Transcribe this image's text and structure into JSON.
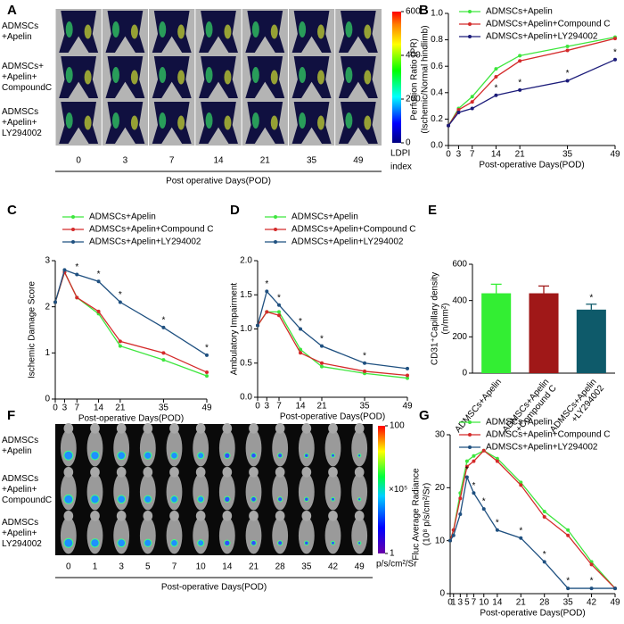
{
  "figures": [
    {
      "panel": "A",
      "rows": [
        [
          "ADMSCs",
          "+Apelin"
        ],
        [
          "ADMSCs+",
          "+Apelin+",
          "CompoundC"
        ],
        [
          "ADMSCs",
          "+Apelin+",
          "LY294002"
        ]
      ],
      "columns": [
        0,
        3,
        7,
        14,
        21,
        35,
        49
      ],
      "xlabel": "Post operative Days(POD)",
      "colorbar": {
        "lim": [
          0,
          600
        ],
        "ticks": [
          0,
          200,
          400,
          600
        ],
        "label": [
          "LDPI",
          "index"
        ]
      }
    },
    {
      "panel": "F",
      "rows": [
        [
          "ADMSCs",
          "+Apelin"
        ],
        [
          "ADMSCs",
          "+Apelin+",
          "CompoundC"
        ],
        [
          "ADMSCs",
          "+Apelin+",
          "LY294002"
        ]
      ],
      "columns": [
        0,
        1,
        3,
        5,
        7,
        10,
        14,
        21,
        28,
        35,
        42,
        49
      ],
      "xlabel": "Post-operative Days(POD)",
      "colorbar": {
        "lim": [
          1,
          100
        ],
        "ticks": [
          1,
          100
        ],
        "log": true,
        "unit": "×10⁵",
        "label": [
          "p/s/cm²/Sr"
        ]
      }
    }
  ],
  "chart_data": [
    {
      "panel": "B",
      "type": "line",
      "ylabel": [
        "Perfusion Ratio (PR)",
        "(Ischemic/Normal hindlimb)"
      ],
      "xlabel": "Post-operative Days(POD)",
      "x": [
        0,
        3,
        7,
        14,
        21,
        35,
        49
      ],
      "xlim": [
        0,
        49
      ],
      "xticks": [
        0,
        3,
        7,
        14,
        21,
        35,
        49
      ],
      "ylim": [
        0,
        1
      ],
      "yticks": [
        {
          "value": 0,
          "label": "0.0"
        },
        {
          "value": 0.2,
          "label": "0.2"
        },
        {
          "value": 0.4,
          "label": "0.4"
        },
        {
          "value": 0.6,
          "label": "0.6"
        },
        {
          "value": 0.8,
          "label": "0.8"
        },
        {
          "value": 1,
          "label": "1.0"
        }
      ],
      "series": [
        {
          "name": "ADMSCs+Apelin",
          "color": "#3de63d",
          "values": [
            0.15,
            0.28,
            0.37,
            0.58,
            0.68,
            0.75,
            0.82
          ]
        },
        {
          "name": "ADMSCs+Apelin+Compound C",
          "color": "#d42a2a",
          "values": [
            0.15,
            0.27,
            0.33,
            0.52,
            0.64,
            0.72,
            0.81
          ]
        },
        {
          "name": "ADMSCs+Apelin+LY294002",
          "color": "#1c1c7a",
          "values": [
            0.15,
            0.25,
            0.28,
            0.38,
            0.42,
            0.49,
            0.65
          ]
        }
      ],
      "stars": {
        "label": "*",
        "x": [
          14,
          21,
          35,
          49
        ]
      }
    },
    {
      "panel": "C",
      "type": "line",
      "ylabel": [
        "Ischemic Damage Score"
      ],
      "xlabel": "Post-operative Days(POD)",
      "x": [
        0,
        3,
        7,
        14,
        21,
        35,
        49
      ],
      "xlim": [
        0,
        49
      ],
      "xticks": [
        0,
        3,
        7,
        14,
        21,
        35,
        49
      ],
      "ylim": [
        0,
        3
      ],
      "yticks": [
        0,
        1,
        2,
        3
      ],
      "series": [
        {
          "name": "ADMSCs+Apelin",
          "color": "#3de63d",
          "values": [
            2.1,
            2.75,
            2.2,
            1.85,
            1.15,
            0.85,
            0.5
          ]
        },
        {
          "name": "ADMSCs+Apelin+Compound C",
          "color": "#d42a2a",
          "values": [
            2.1,
            2.75,
            2.2,
            1.9,
            1.25,
            1.0,
            0.58
          ]
        },
        {
          "name": "ADMSCs+Apelin+LY294002",
          "color": "#1f5080",
          "values": [
            2.1,
            2.8,
            2.7,
            2.55,
            2.1,
            1.55,
            0.95
          ]
        }
      ],
      "stars": {
        "label": "*",
        "x": [
          7,
          14,
          21,
          35,
          49
        ]
      }
    },
    {
      "panel": "D",
      "type": "line",
      "ylabel": [
        "Ambulatory Impairment"
      ],
      "xlabel": "Post-operative Days(POD)",
      "x": [
        0,
        3,
        7,
        14,
        21,
        35,
        49
      ],
      "xlim": [
        0,
        49
      ],
      "xticks": [
        0,
        3,
        7,
        14,
        21,
        35,
        49
      ],
      "ylim": [
        0,
        2
      ],
      "yticks": [
        {
          "value": 0,
          "label": "0.0"
        },
        {
          "value": 0.5,
          "label": "0.5"
        },
        {
          "value": 1,
          "label": "1.0"
        },
        {
          "value": 1.5,
          "label": "1.5"
        },
        {
          "value": 2,
          "label": "2.0"
        }
      ],
      "series": [
        {
          "name": "ADMSCs+Apelin",
          "color": "#3de63d",
          "values": [
            1.05,
            1.25,
            1.25,
            0.7,
            0.45,
            0.35,
            0.28
          ]
        },
        {
          "name": "ADMSCs+Apelin+Compound C",
          "color": "#d42a2a",
          "values": [
            1.05,
            1.25,
            1.2,
            0.65,
            0.5,
            0.38,
            0.32
          ]
        },
        {
          "name": "ADMSCs+Apelin+LY294002",
          "color": "#1f5080",
          "values": [
            1.05,
            1.55,
            1.35,
            1.0,
            0.75,
            0.5,
            0.42
          ]
        }
      ],
      "stars": {
        "label": "*",
        "x": [
          3,
          7,
          14,
          21,
          35
        ]
      }
    },
    {
      "panel": "E",
      "type": "bar",
      "ylabel": [
        "CD31⁺Capillary density",
        "(n/mm²)"
      ],
      "categories": [
        [
          "ADMSCs+Apelin"
        ],
        [
          "ADMSCs+Apelin",
          "+Compound C"
        ],
        [
          "ADMSCs+Apelin",
          "+LY294002"
        ]
      ],
      "values": [
        440,
        440,
        350
      ],
      "errors": [
        50,
        40,
        30
      ],
      "colors": [
        "#33ee33",
        "#a01818",
        "#0e5a6a"
      ],
      "ylim": [
        0,
        600
      ],
      "yticks": [
        0,
        200,
        400,
        600
      ],
      "star": "*"
    },
    {
      "panel": "G",
      "type": "line",
      "ylabel": [
        "Fluc Average Radiance",
        "(10⁸ p/s/cm²/Sr)"
      ],
      "xlabel": "Post-operative Days(POD)",
      "x": [
        0,
        1,
        3,
        5,
        7,
        10,
        14,
        21,
        28,
        35,
        42,
        49
      ],
      "xlim": [
        0,
        49
      ],
      "xticks": [
        0,
        1,
        3,
        5,
        7,
        10,
        14,
        21,
        28,
        35,
        42,
        49
      ],
      "ylim": [
        0,
        30
      ],
      "yticks": [
        0,
        10,
        20,
        30
      ],
      "series": [
        {
          "name": "ADMSCs+Apelin",
          "color": "#3de63d",
          "values": [
            10,
            12,
            19,
            25,
            26,
            27,
            25.5,
            21,
            15.5,
            12,
            6,
            1
          ]
        },
        {
          "name": "ADMSCs+Apelin+Compound C",
          "color": "#d42a2a",
          "values": [
            10,
            12,
            18,
            24,
            25,
            27,
            25,
            20.5,
            14.5,
            11,
            5.5,
            1
          ]
        },
        {
          "name": "ADMSCs+Apelin+LY294002",
          "color": "#1f5080",
          "values": [
            10,
            11,
            15,
            22,
            19,
            16,
            12,
            10.5,
            6,
            1,
            1,
            1
          ]
        }
      ],
      "stars": {
        "label": "*",
        "x": [
          5,
          7,
          10,
          14,
          21,
          28,
          35,
          42
        ]
      }
    }
  ]
}
